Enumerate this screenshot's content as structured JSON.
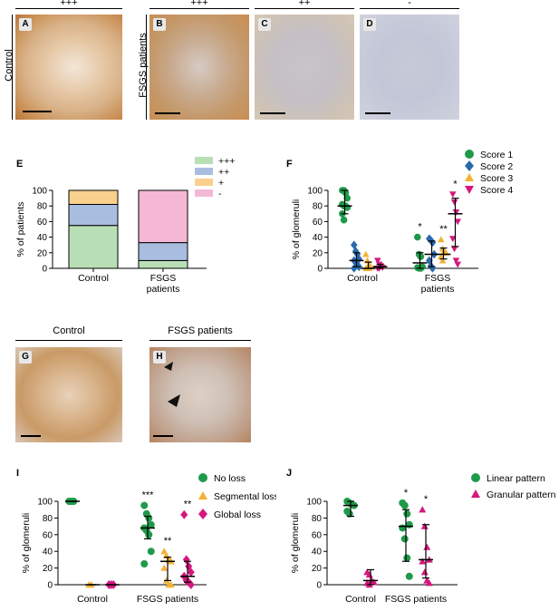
{
  "panels": {
    "A": {
      "letter": "A",
      "grade": "+++"
    },
    "B": {
      "letter": "B",
      "grade": "+++"
    },
    "C": {
      "letter": "C",
      "grade": "++"
    },
    "D": {
      "letter": "D",
      "grade": "-"
    },
    "G": {
      "letter": "G"
    },
    "H": {
      "letter": "H"
    },
    "row1_control": "Control",
    "row1_fsgs": "FSGS patients",
    "row2_control": "Control",
    "row2_fsgs": "FSGS patients"
  },
  "letters": {
    "E": "E",
    "F": "F",
    "I": "I",
    "J": "J"
  },
  "colors": {
    "score1": "#1e9a4a",
    "score2": "#2a6aae",
    "score3": "#f2b134",
    "score4": "#d6177e",
    "bar_plus3": "#b9dfb7",
    "bar_plus2": "#a9bde0",
    "bar_plus1": "#f9d08e",
    "bar_minus": "#f4b8d6"
  },
  "chart_data": [
    {
      "id": "E",
      "type": "bar",
      "stacked": true,
      "categories": [
        "Control",
        "FSGS\npatients"
      ],
      "ylabel": "% of patients",
      "ylim": [
        0,
        100
      ],
      "yticks": [
        0,
        20,
        40,
        60,
        80,
        100
      ],
      "series": [
        {
          "name": "+++",
          "values": [
            55,
            10
          ]
        },
        {
          "name": "++",
          "values": [
            27,
            23
          ]
        },
        {
          "name": "+",
          "values": [
            18,
            0
          ]
        },
        {
          "name": "-",
          "values": [
            0,
            67
          ]
        }
      ]
    },
    {
      "id": "F",
      "type": "scatter",
      "categories": [
        "Control",
        "FSGS\npatients"
      ],
      "ylabel": "% of glomeruli",
      "ylim": [
        0,
        100
      ],
      "yticks": [
        0,
        20,
        40,
        60,
        80,
        100
      ],
      "series": [
        {
          "name": "Score 1",
          "marker": "circle",
          "points": [
            [
              0,
              100
            ],
            [
              0,
              100
            ],
            [
              0,
              97
            ],
            [
              0,
              90
            ],
            [
              0,
              82
            ],
            [
              0,
              80
            ],
            [
              0,
              80
            ],
            [
              0,
              78
            ],
            [
              0,
              70
            ],
            [
              0,
              62
            ],
            [
              1,
              40
            ],
            [
              1,
              18
            ],
            [
              1,
              15
            ],
            [
              1,
              2
            ],
            [
              1,
              1
            ],
            [
              1,
              0
            ],
            [
              1,
              0
            ]
          ],
          "median": [
            80,
            7
          ],
          "iqr": [
            [
              70,
              100
            ],
            [
              0,
              20
            ]
          ]
        },
        {
          "name": "Score 2",
          "marker": "diamond",
          "points": [
            [
              0,
              30
            ],
            [
              0,
              22
            ],
            [
              0,
              18
            ],
            [
              0,
              12
            ],
            [
              0,
              10
            ],
            [
              0,
              8
            ],
            [
              0,
              5
            ],
            [
              0,
              2
            ],
            [
              0,
              0
            ],
            [
              1,
              38
            ],
            [
              1,
              36
            ],
            [
              1,
              33
            ],
            [
              1,
              18
            ],
            [
              1,
              10
            ],
            [
              1,
              3
            ],
            [
              1,
              0
            ]
          ],
          "median": [
            10,
            18
          ],
          "iqr": [
            [
              2,
              20
            ],
            [
              2,
              35
            ]
          ]
        },
        {
          "name": "Score 3",
          "marker": "triangle-up",
          "points": [
            [
              0,
              18
            ],
            [
              0,
              10
            ],
            [
              0,
              5
            ],
            [
              0,
              2
            ],
            [
              0,
              0
            ],
            [
              0,
              0
            ],
            [
              0,
              0
            ],
            [
              1,
              37
            ],
            [
              1,
              25
            ],
            [
              1,
              22
            ],
            [
              1,
              20
            ],
            [
              1,
              15
            ],
            [
              1,
              10
            ]
          ],
          "median": [
            0,
            18
          ],
          "iqr": [
            [
              0,
              8
            ],
            [
              12,
              26
            ]
          ]
        },
        {
          "name": "Score 4",
          "marker": "triangle-down",
          "points": [
            [
              0,
              10
            ],
            [
              0,
              5
            ],
            [
              0,
              3
            ],
            [
              0,
              1
            ],
            [
              0,
              0
            ],
            [
              0,
              0
            ],
            [
              1,
              95
            ],
            [
              1,
              85
            ],
            [
              1,
              72
            ],
            [
              1,
              60
            ],
            [
              1,
              38
            ],
            [
              1,
              25
            ],
            [
              1,
              10
            ],
            [
              1,
              5
            ]
          ],
          "median": [
            2,
            70
          ],
          "iqr": [
            [
              0,
              5
            ],
            [
              28,
              90
            ]
          ]
        }
      ],
      "annotations": [
        {
          "text": "*",
          "series": "Score 1"
        },
        {
          "text": "**",
          "series": "Score 3"
        },
        {
          "text": "*",
          "series": "Score 4"
        }
      ]
    },
    {
      "id": "I",
      "type": "scatter",
      "categories": [
        "Control",
        "FSGS patients"
      ],
      "ylabel": "% of glomeruli",
      "ylim": [
        0,
        100
      ],
      "yticks": [
        0,
        20,
        40,
        60,
        80,
        100
      ],
      "series": [
        {
          "name": "No loss",
          "marker": "circle",
          "points": [
            [
              0,
              100
            ],
            [
              0,
              100
            ],
            [
              0,
              100
            ],
            [
              1,
              95
            ],
            [
              1,
              85
            ],
            [
              1,
              80
            ],
            [
              1,
              72
            ],
            [
              1,
              68
            ],
            [
              1,
              65
            ],
            [
              1,
              60
            ],
            [
              1,
              40
            ],
            [
              1,
              25
            ]
          ],
          "median": [
            100,
            68
          ],
          "iqr": [
            [
              100,
              100
            ],
            [
              55,
              82
            ]
          ]
        },
        {
          "name": "Segmental loss",
          "marker": "triangle-up",
          "points": [
            [
              0,
              0
            ],
            [
              0,
              0
            ],
            [
              1,
              40
            ],
            [
              1,
              35
            ],
            [
              1,
              30
            ],
            [
              1,
              28
            ],
            [
              1,
              20
            ],
            [
              1,
              5
            ],
            [
              1,
              0
            ],
            [
              1,
              0
            ]
          ],
          "median": [
            0,
            28
          ],
          "iqr": [
            [
              0,
              0
            ],
            [
              5,
              33
            ]
          ]
        },
        {
          "name": "Global loss",
          "marker": "diamond",
          "points": [
            [
              0,
              0
            ],
            [
              0,
              0
            ],
            [
              0,
              0
            ],
            [
              1,
              84
            ],
            [
              1,
              30
            ],
            [
              1,
              22
            ],
            [
              1,
              15
            ],
            [
              1,
              10
            ],
            [
              1,
              5
            ],
            [
              1,
              3
            ],
            [
              1,
              0
            ]
          ],
          "median": [
            0,
            10
          ],
          "iqr": [
            [
              0,
              0
            ],
            [
              3,
              28
            ]
          ]
        }
      ],
      "annotations": [
        {
          "text": "***",
          "series": "No loss"
        },
        {
          "text": "**",
          "series": "Segmental loss"
        },
        {
          "text": "**",
          "series": "Global loss"
        }
      ]
    },
    {
      "id": "J",
      "type": "scatter",
      "categories": [
        "Control",
        "FSGS patients"
      ],
      "ylabel": "% of glomeruli",
      "ylim": [
        0,
        100
      ],
      "yticks": [
        0,
        20,
        40,
        60,
        80,
        100
      ],
      "series": [
        {
          "name": "Linear pattern",
          "marker": "circle",
          "points": [
            [
              0,
              100
            ],
            [
              0,
              98
            ],
            [
              0,
              96
            ],
            [
              0,
              95
            ],
            [
              0,
              88
            ],
            [
              0,
              85
            ],
            [
              1,
              98
            ],
            [
              1,
              95
            ],
            [
              1,
              85
            ],
            [
              1,
              72
            ],
            [
              1,
              68
            ],
            [
              1,
              55
            ],
            [
              1,
              32
            ],
            [
              1,
              10
            ]
          ],
          "median": [
            95,
            70
          ],
          "iqr": [
            [
              82,
              100
            ],
            [
              28,
              90
            ]
          ]
        },
        {
          "name": "Granular pattern",
          "marker": "triangle-up",
          "points": [
            [
              0,
              15
            ],
            [
              0,
              12
            ],
            [
              0,
              5
            ],
            [
              0,
              3
            ],
            [
              0,
              2
            ],
            [
              0,
              0
            ],
            [
              1,
              90
            ],
            [
              1,
              70
            ],
            [
              1,
              45
            ],
            [
              1,
              30
            ],
            [
              1,
              28
            ],
            [
              1,
              15
            ],
            [
              1,
              5
            ],
            [
              1,
              2
            ]
          ],
          "median": [
            5,
            30
          ],
          "iqr": [
            [
              0,
              18
            ],
            [
              8,
              72
            ]
          ]
        }
      ],
      "annotations": [
        {
          "text": "*",
          "series": "Linear pattern"
        },
        {
          "text": "*",
          "series": "Granular pattern"
        }
      ]
    }
  ]
}
